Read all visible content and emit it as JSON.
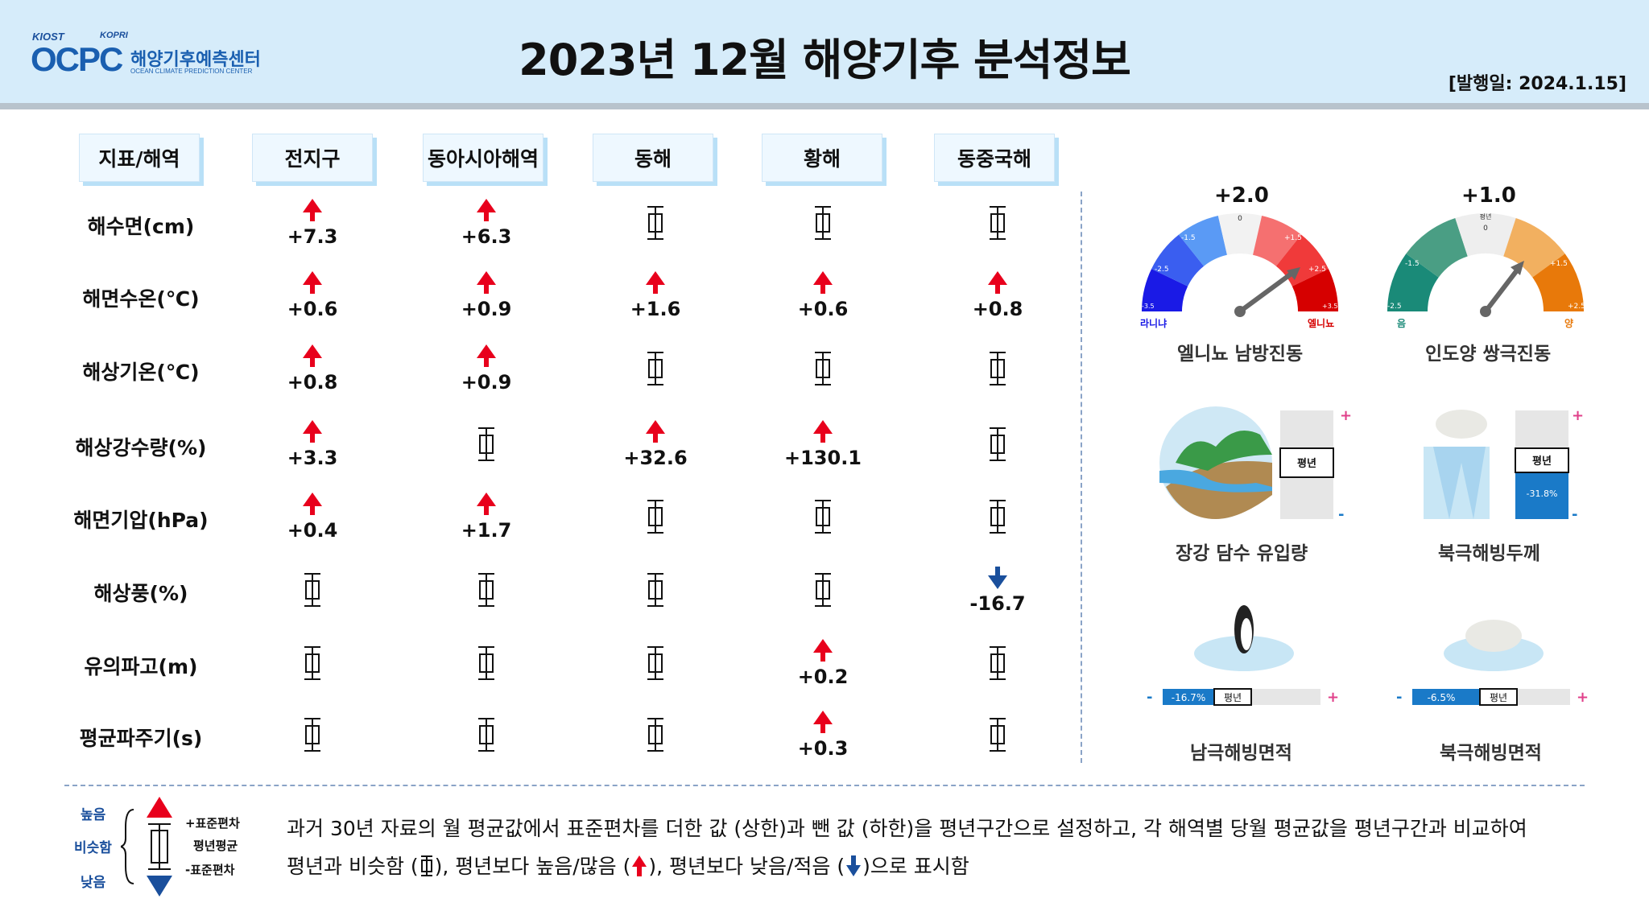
{
  "header": {
    "logo_kiost": "KIOST",
    "logo_kopri": "KOPRI",
    "logo_mark": "OCPC",
    "logo_kr": "해양기후예측센터",
    "logo_en": "OCEAN CLIMATE PREDICTION CENTER",
    "title": "2023년 12월 해양기후 분석정보",
    "pub_date": "[발행일: 2024.1.15]"
  },
  "table": {
    "headers": [
      "지표/해역",
      "전지구",
      "동아시아해역",
      "동해",
      "황해",
      "동중국해"
    ],
    "rows": [
      {
        "label": "해수면(cm)",
        "cells": [
          {
            "s": "up",
            "v": "+7.3"
          },
          {
            "s": "up",
            "v": "+6.3"
          },
          {
            "s": "normal",
            "v": ""
          },
          {
            "s": "normal",
            "v": ""
          },
          {
            "s": "normal",
            "v": ""
          }
        ]
      },
      {
        "label": "해면수온(℃)",
        "cells": [
          {
            "s": "up",
            "v": "+0.6"
          },
          {
            "s": "up",
            "v": "+0.9"
          },
          {
            "s": "up",
            "v": "+1.6"
          },
          {
            "s": "up",
            "v": "+0.6"
          },
          {
            "s": "up",
            "v": "+0.8"
          }
        ]
      },
      {
        "label": "해상기온(℃)",
        "cells": [
          {
            "s": "up",
            "v": "+0.8"
          },
          {
            "s": "up",
            "v": "+0.9"
          },
          {
            "s": "normal",
            "v": ""
          },
          {
            "s": "normal",
            "v": ""
          },
          {
            "s": "normal",
            "v": ""
          }
        ]
      },
      {
        "label": "해상강수량(%)",
        "cells": [
          {
            "s": "up",
            "v": "+3.3"
          },
          {
            "s": "normal",
            "v": ""
          },
          {
            "s": "up",
            "v": "+32.6"
          },
          {
            "s": "up",
            "v": "+130.1"
          },
          {
            "s": "normal",
            "v": ""
          }
        ]
      },
      {
        "label": "해면기압(hPa)",
        "cells": [
          {
            "s": "up",
            "v": "+0.4"
          },
          {
            "s": "up",
            "v": "+1.7"
          },
          {
            "s": "normal",
            "v": ""
          },
          {
            "s": "normal",
            "v": ""
          },
          {
            "s": "normal",
            "v": ""
          }
        ]
      },
      {
        "label": "해상풍(%)",
        "cells": [
          {
            "s": "normal",
            "v": ""
          },
          {
            "s": "normal",
            "v": ""
          },
          {
            "s": "normal",
            "v": ""
          },
          {
            "s": "normal",
            "v": ""
          },
          {
            "s": "down",
            "v": "-16.7"
          }
        ]
      },
      {
        "label": "유의파고(m)",
        "cells": [
          {
            "s": "normal",
            "v": ""
          },
          {
            "s": "normal",
            "v": ""
          },
          {
            "s": "normal",
            "v": ""
          },
          {
            "s": "up",
            "v": "+0.2"
          },
          {
            "s": "normal",
            "v": ""
          }
        ]
      },
      {
        "label": "평균파주기(s)",
        "cells": [
          {
            "s": "normal",
            "v": ""
          },
          {
            "s": "normal",
            "v": ""
          },
          {
            "s": "normal",
            "v": ""
          },
          {
            "s": "up",
            "v": "+0.3"
          },
          {
            "s": "normal",
            "v": ""
          }
        ]
      }
    ]
  },
  "indices": {
    "enso": {
      "value": "+2.0",
      "label": "엘니뇨 남방진동",
      "tick_0": "0",
      "ticks": [
        "-3.5",
        "-2.5",
        "-1.5",
        "+1.5",
        "+2.5",
        "+3.5"
      ],
      "left_word": "라니냐",
      "right_word": "엘니뇨",
      "colors": [
        "#1a1ae6",
        "#3a5ef0",
        "#5a9af5",
        "#f2f2f2",
        "#f57070",
        "#f03a3a",
        "#d60000"
      ]
    },
    "iod": {
      "value": "+1.0",
      "label": "인도양 쌍극진동",
      "tick_0": "0",
      "tick_mid": "평년",
      "ticks": [
        "-2.5",
        "-1.5",
        "+1.5",
        "+2.5"
      ],
      "left_word": "음",
      "right_word": "양",
      "colors": [
        "#1a8a78",
        "#4a9e84",
        "#eeeeee",
        "#f2b060",
        "#e8790a"
      ]
    },
    "yangtze": {
      "label": "장강 담수 유입량",
      "avg": "평년",
      "plus": "+",
      "minus": "-"
    },
    "arctic_thickness": {
      "label": "북극해빙두께",
      "avg": "평년",
      "value": "-31.8%",
      "plus": "+",
      "minus": "-",
      "fraction": 0.4
    },
    "antarctic_area": {
      "label": "남극해빙면적",
      "avg": "평년",
      "value": "-16.7%",
      "plus": "+",
      "minus": "-"
    },
    "arctic_area": {
      "label": "북극해빙면적",
      "avg": "평년",
      "value": "-6.5%",
      "plus": "+",
      "minus": "-"
    }
  },
  "legend": {
    "high": "높음",
    "similar": "비슷함",
    "low": "낮음",
    "plus_sd": "+표준편차",
    "avg": "평년평균",
    "minus_sd": "-표준편차",
    "line1": "과거 30년 자료의 월 평균값에서 표준편차를 더한 값 (상한)과 뺀 값 (하한)을 평년구간으로 설정하고, 각 해역별 당월 평균값을 평년구간과 비교하여",
    "line2_a": "평년과 비슷함 (",
    "line2_b": "), 평년보다 높음/많음 (",
    "line2_c": "), 평년보다 낮음/적음 (",
    "line2_d": ")으로 표시함"
  },
  "colors": {
    "up": "#e8001c",
    "down": "#1a4f9c",
    "header_bg": "#d6ecfa"
  }
}
